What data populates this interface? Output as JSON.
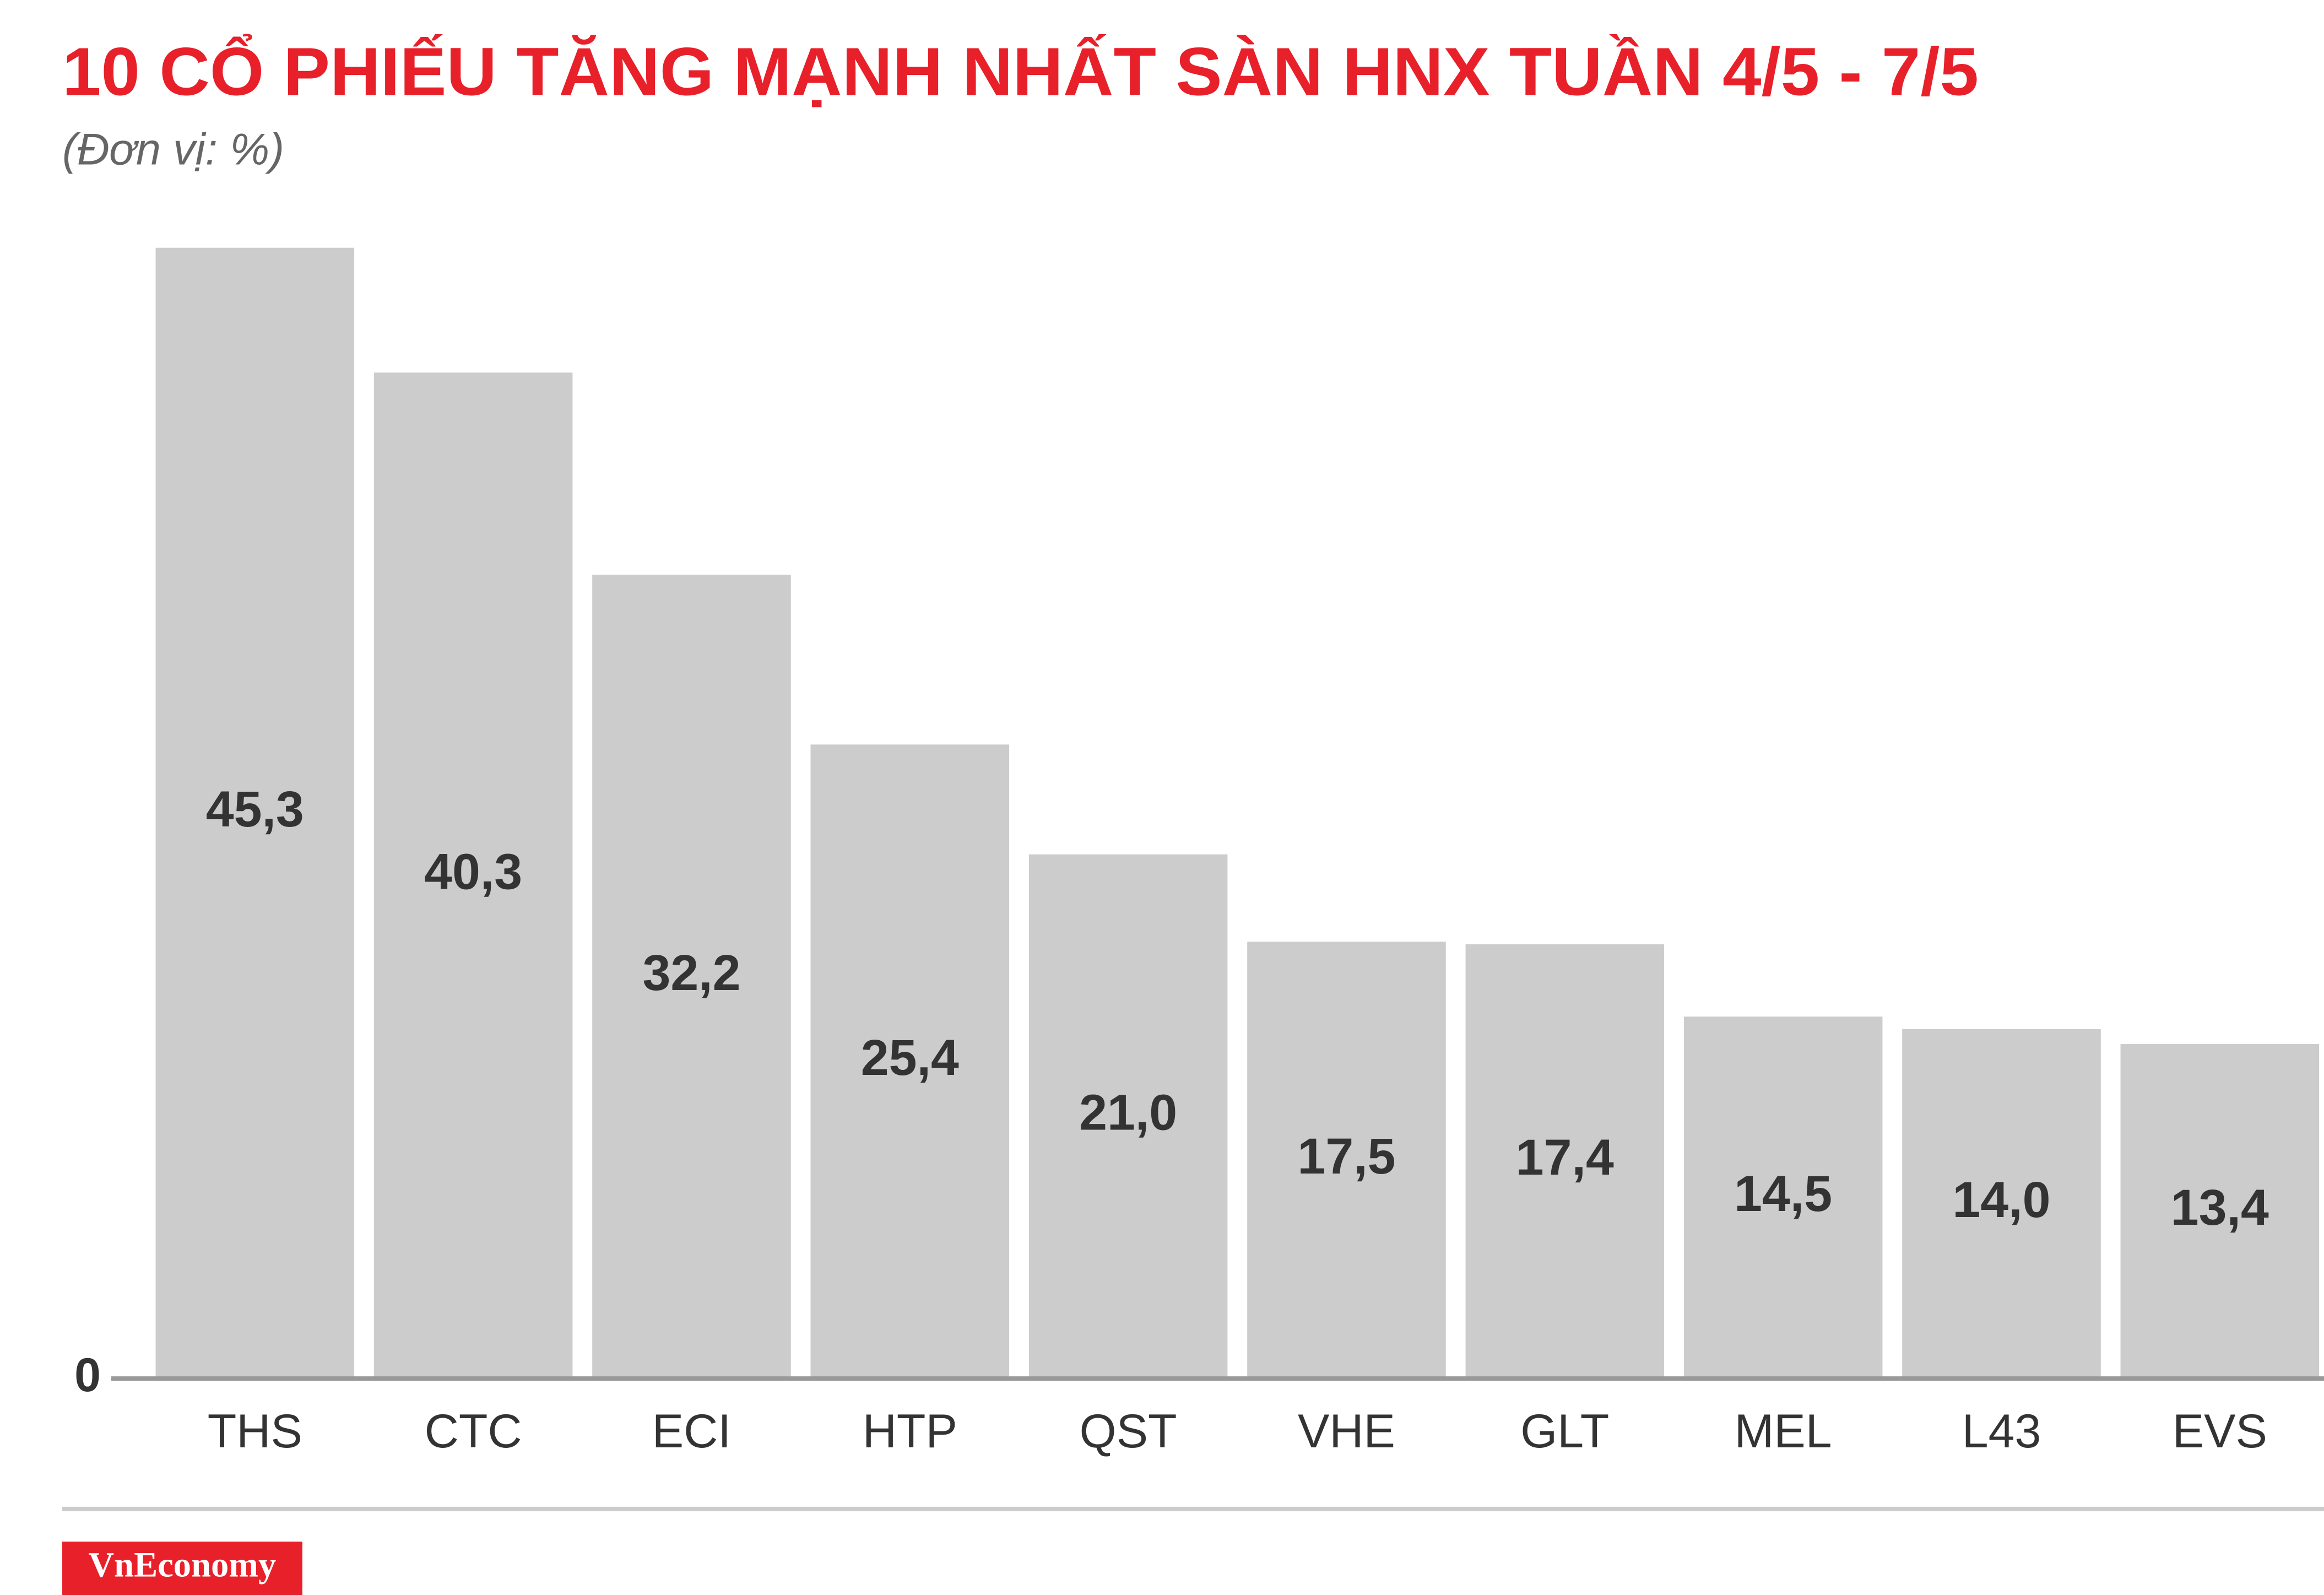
{
  "chart_data": {
    "type": "bar",
    "title": "10 CỔ PHIẾU TĂNG MẠNH NHẤT SÀN HNX TUẦN 4/5 - 7/5",
    "subtitle": "(Đơn vị: %)",
    "categories": [
      "THS",
      "CTC",
      "ECI",
      "HTP",
      "QST",
      "VHE",
      "GLT",
      "MEL",
      "L43",
      "EVS"
    ],
    "values": [
      45.3,
      40.3,
      32.2,
      25.4,
      21.0,
      17.5,
      17.4,
      14.5,
      14.0,
      13.4
    ],
    "value_labels": [
      "45,3",
      "40,3",
      "32,2",
      "25,4",
      "21,0",
      "17,5",
      "17,4",
      "14,5",
      "14,0",
      "13,4"
    ],
    "color": "#cccccc",
    "ylim": [
      0,
      50
    ],
    "yticks": [
      0
    ],
    "source": "VnEconomy"
  }
}
